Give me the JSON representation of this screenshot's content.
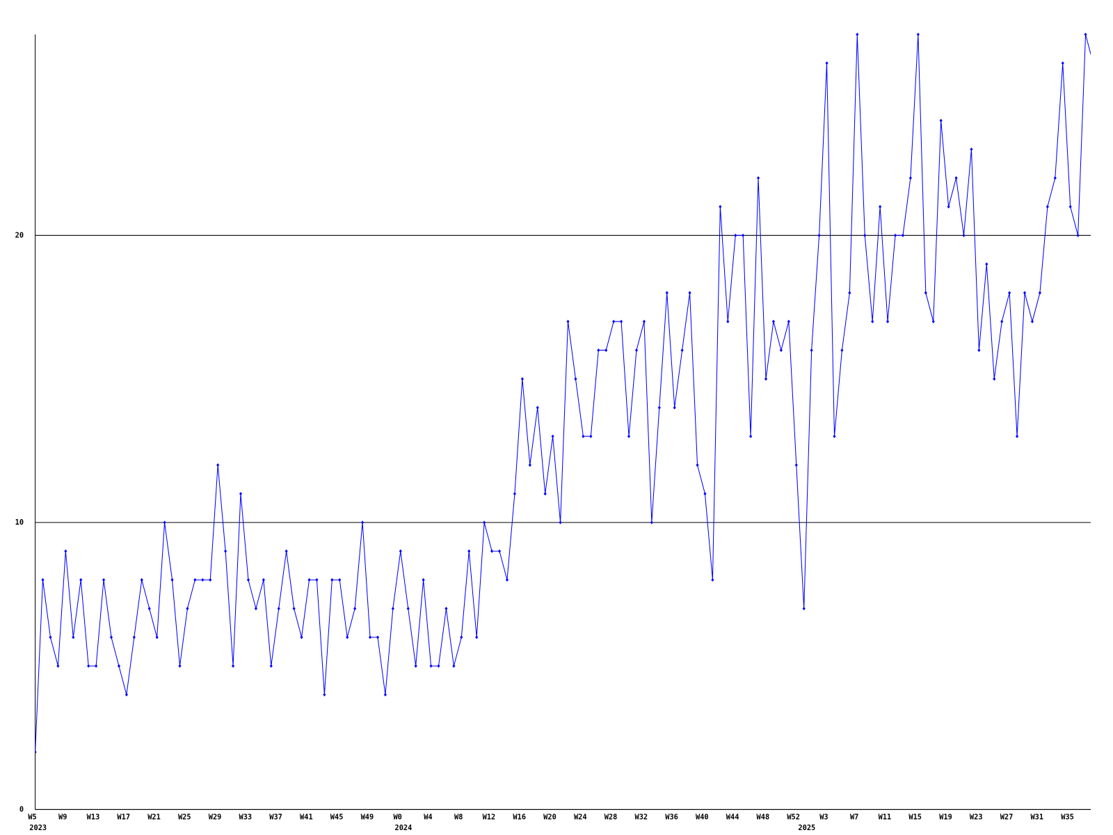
{
  "chart_data": {
    "type": "line",
    "categories": [
      "W5",
      null,
      null,
      null,
      "W9",
      null,
      null,
      null,
      "W13",
      null,
      null,
      null,
      "W17",
      null,
      null,
      null,
      "W21",
      null,
      null,
      null,
      "W25",
      null,
      null,
      null,
      "W29",
      null,
      null,
      null,
      "W33",
      null,
      null,
      null,
      "W37",
      null,
      null,
      null,
      "W41",
      null,
      null,
      null,
      "W45",
      null,
      null,
      null,
      "W49",
      null,
      null,
      null,
      "W0",
      null,
      null,
      null,
      "W4",
      null,
      null,
      null,
      "W8",
      null,
      null,
      null,
      "W12",
      null,
      null,
      null,
      "W16",
      null,
      null,
      null,
      "W20",
      null,
      null,
      null,
      "W24",
      null,
      null,
      null,
      "W28",
      null,
      null,
      null,
      "W32",
      null,
      null,
      null,
      "W36",
      null,
      null,
      null,
      "W40",
      null,
      null,
      null,
      "W44",
      null,
      null,
      null,
      "W48",
      null,
      null,
      null,
      "W52",
      null,
      null,
      null,
      "W3",
      null,
      null,
      null,
      "W7",
      null,
      null,
      null,
      "W11",
      null,
      null,
      null,
      "W15",
      null,
      null,
      null,
      "W19",
      null,
      null,
      null,
      "W23",
      null,
      null,
      null,
      "W27",
      null,
      null,
      null,
      "W31",
      null,
      null,
      null,
      "W35",
      null,
      null,
      null
    ],
    "years": [
      "2023",
      null,
      null,
      null,
      null,
      null,
      null,
      null,
      null,
      null,
      null,
      null,
      null,
      null,
      null,
      null,
      null,
      null,
      null,
      null,
      null,
      null,
      null,
      null,
      null,
      null,
      null,
      null,
      null,
      null,
      null,
      null,
      null,
      null,
      null,
      null,
      null,
      null,
      null,
      null,
      null,
      null,
      null,
      null,
      null,
      null,
      null,
      null,
      "2024",
      null,
      null,
      null,
      null,
      null,
      null,
      null,
      null,
      null,
      null,
      null,
      null,
      null,
      null,
      null,
      null,
      null,
      null,
      null,
      null,
      null,
      null,
      null,
      null,
      null,
      null,
      null,
      null,
      null,
      null,
      null,
      null,
      null,
      null,
      null,
      null,
      null,
      null,
      null,
      null,
      null,
      null,
      null,
      null,
      null,
      null,
      null,
      null,
      null,
      null,
      null,
      null,
      "2025",
      null,
      null,
      null,
      null,
      null,
      null,
      null,
      null,
      null,
      null,
      null,
      null,
      null,
      null,
      null,
      null,
      null,
      null,
      null,
      null,
      null,
      null,
      null,
      null,
      null,
      null,
      null,
      null,
      null,
      null,
      null,
      null,
      null,
      null,
      null,
      null,
      null,
      null
    ],
    "values": [
      2,
      8,
      6,
      5,
      9,
      6,
      8,
      5,
      5,
      8,
      6,
      5,
      4,
      6,
      8,
      7,
      6,
      10,
      8,
      5,
      7,
      8,
      8,
      8,
      12,
      9,
      5,
      11,
      8,
      7,
      8,
      5,
      7,
      9,
      7,
      6,
      8,
      8,
      4,
      8,
      8,
      6,
      7,
      10,
      6,
      6,
      4,
      7,
      9,
      7,
      5,
      8,
      5,
      5,
      7,
      5,
      6,
      9,
      6,
      10,
      9,
      9,
      8,
      11,
      15,
      12,
      14,
      11,
      13,
      10,
      17,
      15,
      13,
      13,
      16,
      16,
      17,
      17,
      13,
      16,
      17,
      10,
      14,
      18,
      14,
      16,
      18,
      12,
      11,
      8,
      21,
      17,
      20,
      20,
      13,
      22,
      15,
      17,
      16,
      17,
      12,
      7,
      16,
      20,
      26,
      13,
      16,
      18,
      27,
      20,
      17,
      21,
      17,
      20,
      20,
      22,
      27,
      18,
      17,
      24,
      21,
      22,
      20,
      23,
      16,
      19,
      15,
      17,
      18,
      13,
      18,
      17,
      18,
      21,
      22,
      26,
      21,
      20,
      27,
      26
    ],
    "color": "#0000ff",
    "ylim": [
      0,
      27
    ],
    "yticks": [
      0,
      10,
      20
    ],
    "grid": true
  }
}
